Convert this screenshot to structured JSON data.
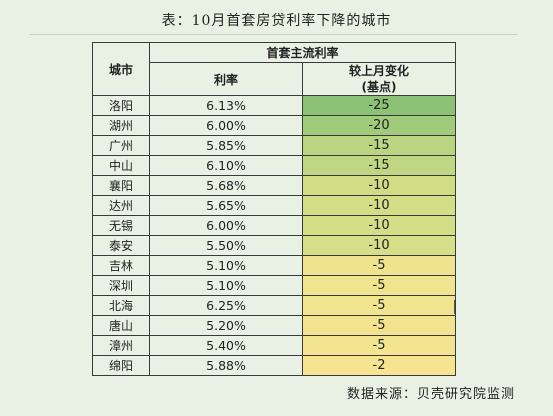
{
  "title": "表：10月首套房贷利率下降的城市",
  "header": {
    "city": "城市",
    "group": "首套主流利率",
    "rate": "利率",
    "change_line1": "较上月变化",
    "change_line2": "(基点)"
  },
  "rows": [
    {
      "city": "洛阳",
      "rate": "6.13%",
      "change": "-25"
    },
    {
      "city": "湖州",
      "rate": "6.00%",
      "change": "-20"
    },
    {
      "city": "广州",
      "rate": "5.85%",
      "change": "-15"
    },
    {
      "city": "中山",
      "rate": "6.10%",
      "change": "-15"
    },
    {
      "city": "襄阳",
      "rate": "5.68%",
      "change": "-10"
    },
    {
      "city": "达州",
      "rate": "5.65%",
      "change": "-10"
    },
    {
      "city": "无锡",
      "rate": "6.00%",
      "change": "-10"
    },
    {
      "city": "泰安",
      "rate": "5.50%",
      "change": "-10"
    },
    {
      "city": "吉林",
      "rate": "5.10%",
      "change": "-5"
    },
    {
      "city": "深圳",
      "rate": "5.10%",
      "change": "-5"
    },
    {
      "city": "北海",
      "rate": "6.25%",
      "change": "-5"
    },
    {
      "city": "唐山",
      "rate": "5.20%",
      "change": "-5"
    },
    {
      "city": "漳州",
      "rate": "5.40%",
      "change": "-5"
    },
    {
      "city": "绵阳",
      "rate": "5.88%",
      "change": "-2"
    }
  ],
  "change_colors": [
    "#8cc276",
    "#a1ca7c",
    "#bad581",
    "#bfd782",
    "#d1dd85",
    "#d3de86",
    "#d4de86",
    "#d6df87",
    "#efe38e",
    "#f0e48e",
    "#f1e48f",
    "#f2e48f",
    "#f3e590",
    "#f6e490"
  ],
  "source": "数据来源：贝壳研究院监测"
}
